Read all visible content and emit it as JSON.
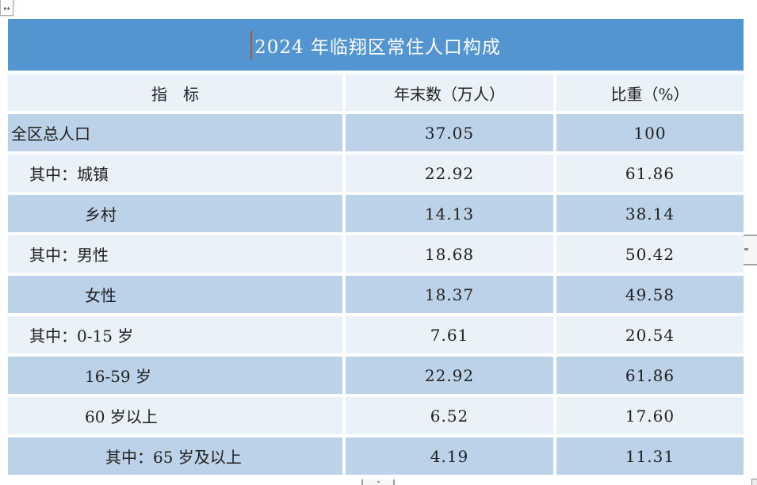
{
  "document": {
    "title_row": {
      "title": "2024 年临翔区常住人口构成"
    },
    "table": {
      "columns": [
        {
          "label": "指　标"
        },
        {
          "label": "年末数（万人）"
        },
        {
          "label": "比重（%）"
        }
      ],
      "rows": [
        {
          "indicator": "全区总人口",
          "year_end": "37.05",
          "share": "100",
          "indent": 0
        },
        {
          "indicator": "其中：城镇",
          "year_end": "22.92",
          "share": "61.86",
          "indent": 1
        },
        {
          "indicator": "乡村",
          "year_end": "14.13",
          "share": "38.14",
          "indent": 2
        },
        {
          "indicator": "其中：男性",
          "year_end": "18.68",
          "share": "50.42",
          "indent": 1
        },
        {
          "indicator": "女性",
          "year_end": "18.37",
          "share": "49.58",
          "indent": 2
        },
        {
          "indicator": "其中：0-15 岁",
          "year_end": "7.61",
          "share": "20.54",
          "indent": 1
        },
        {
          "indicator": "16-59 岁",
          "year_end": "22.92",
          "share": "61.86",
          "indent": 2
        },
        {
          "indicator": "60 岁以上",
          "year_end": "6.52",
          "share": "17.60",
          "indent": 2
        },
        {
          "indicator": "其中：65 岁及以上",
          "year_end": "4.19",
          "share": "11.31",
          "indent": 3
        }
      ]
    },
    "colors": {
      "title_bg": "#5295d0",
      "title_text": "#ffffff",
      "band_blue": "#bcd2e8",
      "band_light": "#eaf1f9",
      "header_bg": "#eaf1f9",
      "cell_text": "#212121",
      "caret": "#a85c28",
      "page_bg": "#ffffff"
    },
    "icons": {
      "move_handle": "↔"
    }
  }
}
